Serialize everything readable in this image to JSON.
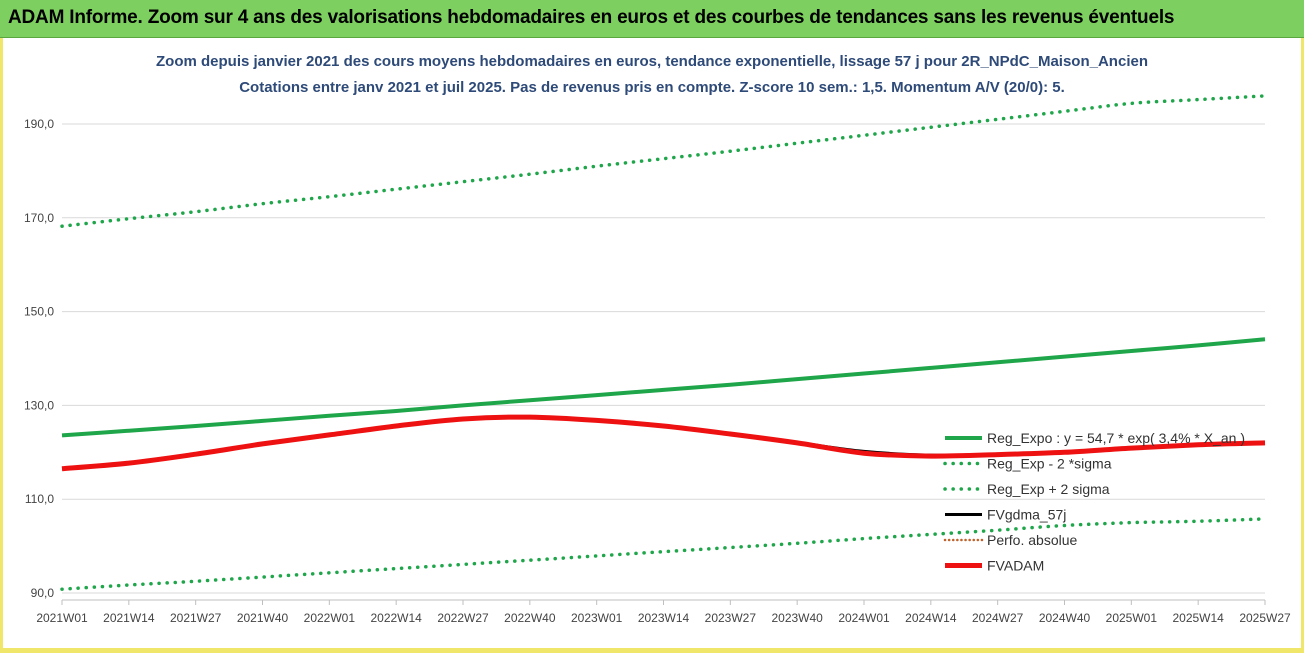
{
  "header": {
    "title": "ADAM Informe. Zoom sur 4 ans des valorisations hebdomadaires en euros et des courbes de tendances sans les revenus éventuels"
  },
  "colors": {
    "header_bg": "#7dd05f",
    "green": "#1fa64a",
    "black": "#000000",
    "red": "#ee1111",
    "title_blue": "#2e4a78"
  },
  "chart_data": {
    "type": "line",
    "title_line1": "Zoom depuis janvier 2021 des cours moyens hebdomadaires en euros, tendance exponentielle, lissage 57 j pour 2R_NPdC_Maison_Ancien",
    "title_line2": "Cotations entre janv 2021 et juil 2025. Pas de revenus pris en compte. Z-score 10 sem.: 1,5. Momentum A/V (20/0): 5.",
    "y_ticks": [
      "90,0",
      "110,0",
      "130,0",
      "150,0",
      "170,0",
      "190,0"
    ],
    "ylim": [
      90,
      200
    ],
    "x_ticks": [
      "2021W01",
      "2021W14",
      "2021W27",
      "2021W40",
      "2022W01",
      "2022W14",
      "2022W27",
      "2022W40",
      "2023W01",
      "2023W14",
      "2023W27",
      "2023W40",
      "2024W01",
      "2024W14",
      "2024W27",
      "2024W40",
      "2025W01",
      "2025W14",
      "2025W27"
    ],
    "grid": "horizontal",
    "legend_placement": "bottom-right",
    "series": [
      {
        "name": "Reg_Expo : y = 54,7 * exp( 3,4% * X_an )",
        "style": "solid-green",
        "values": [
          123.6,
          124.6,
          125.6,
          126.7,
          127.8,
          128.8,
          130.0,
          131.1,
          132.2,
          133.3,
          134.4,
          135.6,
          136.8,
          138.0,
          139.2,
          140.4,
          141.6,
          142.8,
          144.1
        ]
      },
      {
        "name": "Reg_Exp - 2 *sigma",
        "style": "dotted-green",
        "values": [
          90.8,
          91.7,
          92.5,
          93.4,
          94.3,
          95.2,
          96.1,
          97.0,
          97.9,
          98.8,
          99.7,
          100.6,
          101.6,
          102.5,
          103.4,
          104.4,
          105.0,
          105.3,
          105.8
        ]
      },
      {
        "name": "Reg_Exp + 2 sigma",
        "style": "dotted-green",
        "values": [
          168.2,
          169.8,
          171.3,
          173.0,
          174.5,
          176.1,
          177.7,
          179.3,
          181.0,
          182.6,
          184.2,
          185.9,
          187.6,
          189.3,
          191.0,
          192.7,
          194.4,
          195.2,
          196.0
        ]
      },
      {
        "name": "FVgdma_57j",
        "style": "solid-black",
        "values": [
          116.6,
          117.8,
          119.6,
          121.8,
          123.6,
          125.5,
          127.0,
          127.4,
          126.8,
          125.7,
          124.0,
          122.1,
          120.2,
          119.4,
          119.6,
          120.0,
          120.8,
          121.5,
          122.0
        ]
      },
      {
        "name": "Perfo. absolue",
        "style": "dotted-orange",
        "values": []
      },
      {
        "name": "FVADAM",
        "style": "solid-red",
        "values": [
          116.5,
          117.7,
          119.6,
          121.8,
          123.7,
          125.6,
          127.1,
          127.5,
          126.8,
          125.6,
          123.9,
          122.0,
          119.8,
          119.2,
          119.5,
          120.0,
          120.9,
          121.6,
          122.0
        ]
      }
    ]
  }
}
